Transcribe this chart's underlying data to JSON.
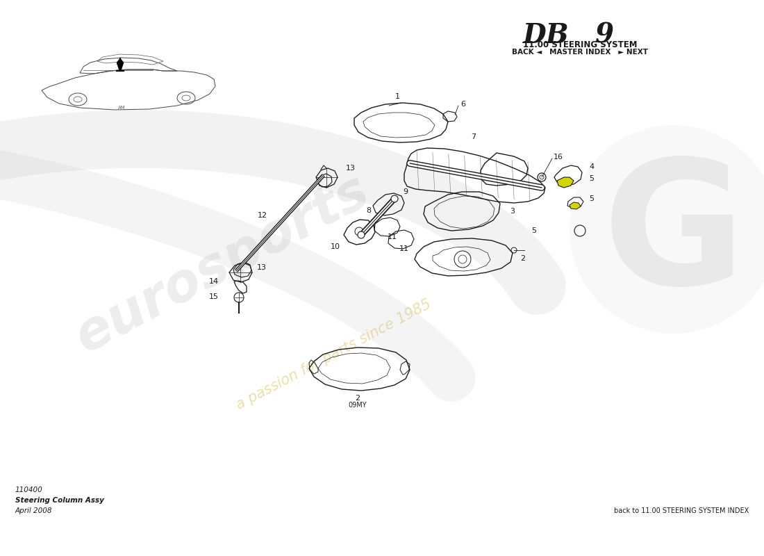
{
  "title_main": "DB 9",
  "title_sub": "11.00 STEERING SYSTEM",
  "nav_text": "BACK ◄   MASTER INDEX   ► NEXT",
  "part_number": "110400",
  "part_name": "Steering Column Assy",
  "date": "April 2008",
  "footer_right": "back to 11.00 STEERING SYSTEM INDEX",
  "bg_color": "#ffffff",
  "line_color": "#1a1a1a",
  "eurosport_text": "eurosports",
  "passion_text": "a passion for parts since 1985"
}
